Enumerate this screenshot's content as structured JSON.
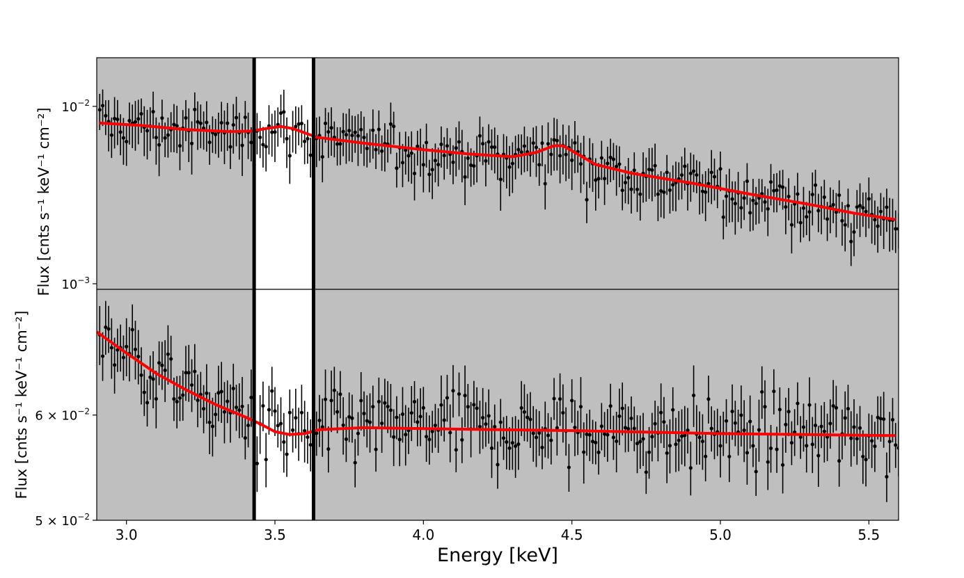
{
  "chart_data": {
    "type": "scatter",
    "xlabel": "Energy [keV]",
    "xlim": [
      2.9,
      5.6
    ],
    "xticks": [
      3.0,
      3.5,
      4.0,
      4.5,
      5.0,
      5.5
    ],
    "xtick_labels": [
      "3.0",
      "3.5",
      "4.0",
      "4.5",
      "5.0",
      "5.5"
    ],
    "highlight_region": {
      "x0": 3.43,
      "x1": 3.63
    },
    "panels": [
      {
        "id": "top",
        "ylabel": "Flux [cnts s⁻¹ keV⁻¹ cm⁻²]",
        "yscale": "log",
        "ylim": [
          0.00093,
          0.0188
        ],
        "yticks": [
          {
            "value": 0.01,
            "label": "10",
            "exp": "−2"
          },
          {
            "value": 0.001,
            "label": "10",
            "exp": "−3"
          }
        ],
        "model_color": "#ff0000",
        "model": [
          [
            2.91,
            0.00805
          ],
          [
            3.05,
            0.0078
          ],
          [
            3.2,
            0.0074
          ],
          [
            3.35,
            0.0072
          ],
          [
            3.42,
            0.00725
          ],
          [
            3.47,
            0.0075
          ],
          [
            3.52,
            0.0077
          ],
          [
            3.56,
            0.0075
          ],
          [
            3.6,
            0.0071
          ],
          [
            3.64,
            0.0067
          ],
          [
            3.8,
            0.0062
          ],
          [
            4.0,
            0.0057
          ],
          [
            4.15,
            0.0054
          ],
          [
            4.3,
            0.0052
          ],
          [
            4.38,
            0.0055
          ],
          [
            4.44,
            0.006
          ],
          [
            4.47,
            0.006
          ],
          [
            4.51,
            0.0055
          ],
          [
            4.58,
            0.0047
          ],
          [
            4.7,
            0.0042
          ],
          [
            4.9,
            0.0037
          ],
          [
            5.1,
            0.0032
          ],
          [
            5.3,
            0.0028
          ],
          [
            5.45,
            0.0025
          ],
          [
            5.59,
            0.0023
          ]
        ]
      },
      {
        "id": "bottom",
        "ylabel": "Flux [cnts s⁻¹ keV⁻¹ cm⁻²]",
        "yscale": "log",
        "ylim": [
          0.05,
          0.0746
        ],
        "yticks": [
          {
            "value": 0.06,
            "label": "6 × 10",
            "exp": "−2"
          },
          {
            "value": 0.05,
            "label": "5 × 10",
            "exp": "−2"
          }
        ],
        "model_color": "#ff0000",
        "model": [
          [
            2.9,
            0.0693
          ],
          [
            3.0,
            0.0668
          ],
          [
            3.1,
            0.0645
          ],
          [
            3.2,
            0.0627
          ],
          [
            3.3,
            0.0611
          ],
          [
            3.4,
            0.0598
          ],
          [
            3.45,
            0.0591
          ],
          [
            3.5,
            0.0583
          ],
          [
            3.55,
            0.058
          ],
          [
            3.6,
            0.0581
          ],
          [
            3.65,
            0.0585
          ],
          [
            3.8,
            0.0587
          ],
          [
            4.0,
            0.0586
          ],
          [
            4.5,
            0.0584
          ],
          [
            5.0,
            0.0581
          ],
          [
            5.59,
            0.0579
          ]
        ]
      }
    ]
  }
}
